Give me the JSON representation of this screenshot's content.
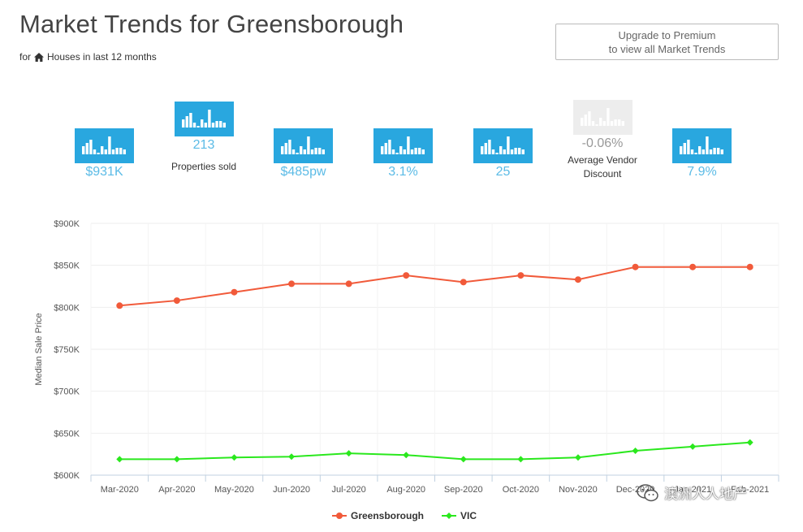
{
  "header": {
    "title": "Market Trends for Greensborough",
    "subtitle_prefix": "for",
    "subtitle": "Houses in last 12 months",
    "home_icon": "home-icon"
  },
  "premium_button": {
    "line1": "Upgrade to Premium",
    "line2": "to view all Market Trends"
  },
  "stats": [
    {
      "value": "$931K",
      "label": ""
    },
    {
      "value": "213",
      "label": "Properties sold"
    },
    {
      "value": "$485pw",
      "label": ""
    },
    {
      "value": "3.1%",
      "label": ""
    },
    {
      "value": "25",
      "label": ""
    },
    {
      "value": "-0.06%",
      "label_line1": "Average Vendor",
      "label_line2": "Discount"
    },
    {
      "value": "7.9%",
      "label": ""
    }
  ],
  "colors": {
    "stat_icon": "#29a7df",
    "stat_icon_disabled": "#ededed",
    "stat_value": "#5bbbe6",
    "greensborough": "#f15a3a",
    "vic": "#2ae81d"
  },
  "chart_data": {
    "type": "line",
    "title": "",
    "xlabel": "",
    "ylabel": "Median Sale Price",
    "categories": [
      "Mar-2020",
      "Apr-2020",
      "May-2020",
      "Jun-2020",
      "Jul-2020",
      "Aug-2020",
      "Sep-2020",
      "Oct-2020",
      "Nov-2020",
      "Dec-2020",
      "Jan-2021",
      "Feb-2021"
    ],
    "yticks": [
      "$600K",
      "$650K",
      "$700K",
      "$750K",
      "$800K",
      "$850K",
      "$900K"
    ],
    "ylim": [
      600000,
      900000
    ],
    "grid": true,
    "legend_position": "bottom-center",
    "series": [
      {
        "name": "Greensborough",
        "values": [
          802000,
          808000,
          818000,
          828000,
          828000,
          838000,
          830000,
          838000,
          833000,
          848000,
          848000,
          848000
        ]
      },
      {
        "name": "VIC",
        "values": [
          619000,
          619000,
          621000,
          622000,
          626000,
          624000,
          619000,
          619000,
          621000,
          629000,
          634000,
          639000
        ]
      }
    ]
  },
  "watermark": {
    "text": "澳洲人人地产",
    "icon": "wechat-icon"
  }
}
